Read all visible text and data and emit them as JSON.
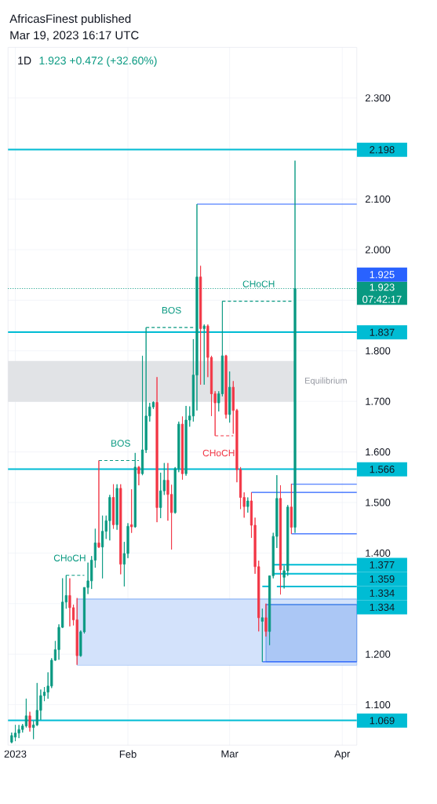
{
  "chart_data": {
    "type": "candlestick",
    "title": "AfricasFinest published",
    "subtitle": "Mar 19, 2023 16:17 UTC",
    "x": [
      "2022-12-31",
      "2023-01-01",
      "2023-01-02",
      "2023-01-03",
      "2023-01-04",
      "2023-01-05",
      "2023-01-06",
      "2023-01-07",
      "2023-01-08",
      "2023-01-09",
      "2023-01-10",
      "2023-01-11",
      "2023-01-12",
      "2023-01-13",
      "2023-01-14",
      "2023-01-15",
      "2023-01-16",
      "2023-01-17",
      "2023-01-18",
      "2023-01-19",
      "2023-01-20",
      "2023-01-21",
      "2023-01-22",
      "2023-01-23",
      "2023-01-24",
      "2023-01-25",
      "2023-01-26",
      "2023-01-27",
      "2023-01-28",
      "2023-01-29",
      "2023-01-30",
      "2023-01-31",
      "2023-02-01",
      "2023-02-02",
      "2023-02-03",
      "2023-02-04",
      "2023-02-05",
      "2023-02-06",
      "2023-02-07",
      "2023-02-08",
      "2023-02-09",
      "2023-02-10",
      "2023-02-11",
      "2023-02-12",
      "2023-02-13",
      "2023-02-14",
      "2023-02-15",
      "2023-02-16",
      "2023-02-17",
      "2023-02-18",
      "2023-02-19",
      "2023-02-20",
      "2023-02-21",
      "2023-02-22",
      "2023-02-23",
      "2023-02-24",
      "2023-02-25",
      "2023-02-26",
      "2023-02-27",
      "2023-02-28",
      "2023-03-01",
      "2023-03-02",
      "2023-03-03",
      "2023-03-04",
      "2023-03-05",
      "2023-03-06",
      "2023-03-07",
      "2023-03-08",
      "2023-03-09",
      "2023-03-10",
      "2023-03-11",
      "2023-03-12",
      "2023-03-13",
      "2023-03-14",
      "2023-03-15",
      "2023-03-16",
      "2023-03-17",
      "2023-03-18",
      "2023-03-19"
    ],
    "ohlc": [
      [
        1.026,
        1.045,
        1.024,
        1.039
      ],
      [
        1.036,
        1.06,
        1.028,
        1.044
      ],
      [
        1.044,
        1.06,
        1.034,
        1.051
      ],
      [
        1.051,
        1.062,
        1.045,
        1.058
      ],
      [
        1.058,
        1.112,
        1.055,
        1.078
      ],
      [
        1.078,
        1.086,
        1.047,
        1.055
      ],
      [
        1.055,
        1.068,
        1.032,
        1.06
      ],
      [
        1.06,
        1.143,
        1.058,
        1.089
      ],
      [
        1.089,
        1.13,
        1.07,
        1.118
      ],
      [
        1.118,
        1.135,
        1.107,
        1.125
      ],
      [
        1.125,
        1.164,
        1.112,
        1.137
      ],
      [
        1.137,
        1.192,
        1.133,
        1.188
      ],
      [
        1.188,
        1.226,
        1.187,
        1.209
      ],
      [
        1.209,
        1.259,
        1.189,
        1.253
      ],
      [
        1.253,
        1.35,
        1.252,
        1.303
      ],
      [
        1.303,
        1.356,
        1.29,
        1.316
      ],
      [
        1.316,
        1.35,
        1.255,
        1.292
      ],
      [
        1.292,
        1.298,
        1.257,
        1.268
      ],
      [
        1.268,
        1.311,
        1.179,
        1.197
      ],
      [
        1.197,
        1.247,
        1.195,
        1.244
      ],
      [
        1.244,
        1.332,
        1.241,
        1.332
      ],
      [
        1.332,
        1.381,
        1.319,
        1.345
      ],
      [
        1.345,
        1.394,
        1.329,
        1.386
      ],
      [
        1.386,
        1.448,
        1.371,
        1.42
      ],
      [
        1.42,
        1.583,
        1.41,
        1.412
      ],
      [
        1.412,
        1.474,
        1.35,
        1.443
      ],
      [
        1.443,
        1.474,
        1.428,
        1.464
      ],
      [
        1.464,
        1.515,
        1.425,
        1.51
      ],
      [
        1.51,
        1.536,
        1.448,
        1.456
      ],
      [
        1.456,
        1.536,
        1.446,
        1.528
      ],
      [
        1.528,
        1.536,
        1.358,
        1.378
      ],
      [
        1.378,
        1.422,
        1.334,
        1.399
      ],
      [
        1.399,
        1.459,
        1.39,
        1.453
      ],
      [
        1.456,
        1.526,
        1.44,
        1.452
      ],
      [
        1.452,
        1.598,
        1.45,
        1.57
      ],
      [
        1.57,
        1.572,
        1.534,
        1.557
      ],
      [
        1.557,
        1.79,
        1.554,
        1.604
      ],
      [
        1.604,
        1.846,
        1.598,
        1.671
      ],
      [
        1.671,
        1.697,
        1.66,
        1.689
      ],
      [
        1.689,
        1.7,
        1.685,
        1.698
      ],
      [
        1.698,
        1.748,
        1.461,
        1.49
      ],
      [
        1.49,
        1.559,
        1.469,
        1.523
      ],
      [
        1.523,
        1.578,
        1.515,
        1.544
      ],
      [
        1.544,
        1.578,
        1.464,
        1.516
      ],
      [
        1.516,
        1.535,
        1.407,
        1.48
      ],
      [
        1.48,
        1.57,
        1.478,
        1.567
      ],
      [
        1.567,
        1.66,
        1.56,
        1.655
      ],
      [
        1.655,
        1.67,
        1.545,
        1.557
      ],
      [
        1.557,
        1.691,
        1.553,
        1.663
      ],
      [
        1.663,
        1.69,
        1.65,
        1.671
      ],
      [
        1.671,
        1.823,
        1.66,
        1.752
      ],
      [
        1.752,
        2.09,
        1.682,
        1.946
      ],
      [
        1.946,
        1.968,
        1.733,
        1.844
      ],
      [
        1.844,
        1.852,
        1.733,
        1.849
      ],
      [
        1.849,
        1.852,
        1.748,
        1.787
      ],
      [
        1.787,
        1.79,
        1.671,
        1.715
      ],
      [
        1.715,
        1.72,
        1.632,
        1.697
      ],
      [
        1.697,
        1.72,
        1.68,
        1.715
      ],
      [
        1.715,
        1.898,
        1.71,
        1.79
      ],
      [
        1.79,
        1.792,
        1.666,
        1.674
      ],
      [
        1.674,
        1.759,
        1.658,
        1.728
      ],
      [
        1.728,
        1.74,
        1.636,
        1.682
      ],
      [
        1.682,
        1.685,
        1.54,
        1.565
      ],
      [
        1.565,
        1.57,
        1.487,
        1.51
      ],
      [
        1.51,
        1.52,
        1.47,
        1.492
      ],
      [
        1.492,
        1.51,
        1.48,
        1.503
      ],
      [
        1.503,
        1.52,
        1.43,
        1.455
      ],
      [
        1.455,
        1.47,
        1.359,
        1.373
      ],
      [
        1.373,
        1.385,
        1.245,
        1.272
      ],
      [
        1.265,
        1.29,
        1.185,
        1.272
      ],
      [
        1.272,
        1.3,
        1.235,
        1.245
      ],
      [
        1.245,
        1.355,
        1.218,
        1.355
      ],
      [
        1.355,
        1.44,
        1.35,
        1.433
      ],
      [
        1.433,
        1.554,
        1.41,
        1.508
      ],
      [
        1.508,
        1.534,
        1.318,
        1.367
      ],
      [
        1.352,
        1.375,
        1.33,
        1.365
      ],
      [
        1.365,
        1.495,
        1.355,
        1.491
      ],
      [
        1.491,
        1.537,
        1.438,
        1.451
      ],
      [
        1.451,
        2.176,
        1.44,
        1.923
      ]
    ],
    "series": [
      {
        "type": "line",
        "x": [
          "2023-01-18",
          "2023-04-05"
        ],
        "values": [
          1.309,
          1.309
        ],
        "lower": [
          1.178,
          1.178
        ],
        "upper": [
          1.309,
          1.309
        ],
        "color": "#91B7F5"
      },
      {
        "type": "line",
        "x": [
          "2023-03-11",
          "2023-04-05"
        ],
        "values": [
          1.298,
          1.298
        ],
        "lower": [
          1.185,
          1.185
        ],
        "upper": [
          1.298,
          1.298
        ],
        "color": "#2D73E6"
      },
      {
        "type": "line",
        "name": "1.377",
        "x": [
          "2023-03-13",
          "2023-04-05"
        ],
        "values": [
          1.377,
          1.377
        ],
        "color": "#00BCD4"
      },
      {
        "type": "line",
        "name": "1.359",
        "x": [
          "2023-03-13",
          "2023-04-05"
        ],
        "values": [
          1.359,
          1.359
        ],
        "color": "#00BCD4"
      },
      {
        "type": "line",
        "name": "1.334",
        "x": [
          "2023-03-10",
          "2023-03-12"
        ],
        "values": [
          1.334,
          1.334
        ],
        "color": "#00BCD4"
      },
      {
        "type": "line",
        "name": "1.334",
        "x": [
          "2023-03-14",
          "2023-04-05"
        ],
        "values": [
          1.334,
          1.334
        ],
        "color": "#00BCD4"
      },
      {
        "type": "line",
        "x": [
          "2023-02-20",
          "2023-04-05"
        ],
        "values": [
          2.09,
          2.09
        ],
        "color": "#2962FF"
      },
      {
        "type": "line",
        "x": [
          "2023-03-07",
          "2023-04-05"
        ],
        "values": [
          1.52,
          1.52
        ],
        "color": "#2962FF"
      },
      {
        "type": "line",
        "x": [
          "2023-03-18",
          "2023-04-05"
        ],
        "values": [
          1.536,
          1.536
        ],
        "color": "#2962FF"
      },
      {
        "type": "line",
        "x": [
          "2023-03-18",
          "2023-04-05"
        ],
        "values": [
          1.438,
          1.438
        ],
        "color": "#2962FF"
      },
      {
        "type": "line",
        "x": [
          "2023-03-10",
          "2023-04-05"
        ],
        "values": [
          1.185,
          1.185
        ],
        "color": "#2962FF"
      },
      {
        "type": "line",
        "x": [
          "2023-01-15",
          "2023-01-20"
        ],
        "values": [
          1.356,
          1.356
        ],
        "color": "#089981",
        "line_style": "dashed"
      },
      {
        "type": "line",
        "x": [
          "2023-01-24",
          "2023-02-04"
        ],
        "values": [
          1.583,
          1.583
        ],
        "color": "#089981",
        "line_style": "dashed"
      },
      {
        "type": "line",
        "x": [
          "2023-02-06",
          "2023-02-19"
        ],
        "values": [
          1.846,
          1.846
        ],
        "color": "#089981",
        "line_style": "dashed"
      },
      {
        "type": "line",
        "x": [
          "2023-02-25",
          "2023-03-02"
        ],
        "values": [
          1.632,
          1.632
        ],
        "color": "#F23645",
        "line_style": "dashed"
      },
      {
        "type": "line",
        "x": [
          "2023-02-27",
          "2023-03-18"
        ],
        "values": [
          1.898,
          1.898
        ],
        "color": "#089981",
        "line_style": "dashed"
      }
    ],
    "xlim": [
      "2022-12-30",
      "2023-04-05"
    ],
    "ylim": [
      1.02,
      2.4
    ],
    "xticks": [
      {
        "value": "2023-01-01",
        "label": "2023"
      },
      {
        "value": "2023-02-01",
        "label": "Feb"
      },
      {
        "value": "2023-03-01",
        "label": "Mar"
      },
      {
        "value": "2023-04-01",
        "label": "Apr"
      }
    ],
    "yticks": [
      {
        "value": 1.1,
        "label": "1.100"
      },
      {
        "value": 1.2,
        "label": "1.200"
      },
      {
        "value": 1.3,
        "label": null
      },
      {
        "value": 1.4,
        "label": "1.400"
      },
      {
        "value": 1.5,
        "label": "1.500"
      },
      {
        "value": 1.6,
        "label": "1.600"
      },
      {
        "value": 1.7,
        "label": "1.700"
      },
      {
        "value": 1.8,
        "label": "1.800"
      },
      {
        "value": 1.9,
        "label": null
      },
      {
        "value": 2.0,
        "label": "2.000"
      },
      {
        "value": 2.1,
        "label": "2.100"
      },
      {
        "value": 2.2,
        "label": null
      },
      {
        "value": 2.3,
        "label": "2.300"
      }
    ],
    "grid": true,
    "legend": "right",
    "ref_lines": [
      {
        "axis": "y",
        "value": 2.198,
        "label": "2.198",
        "color": "#00BCD4"
      },
      {
        "axis": "y",
        "value": 1.837,
        "label": "1.837",
        "color": "#00BCD4"
      },
      {
        "axis": "y",
        "value": 1.566,
        "label": "1.566",
        "color": "#00BCD4"
      },
      {
        "axis": "y",
        "value": 1.069,
        "label": "1.069",
        "color": "#00BCD4"
      },
      {
        "axis": "y",
        "value": 1.923,
        "label": "1.923 07:42:17",
        "color": "#089981",
        "line_style": "dotted"
      }
    ],
    "bands": [
      {
        "axis": "y",
        "from": 1.699,
        "to": 1.78,
        "label": "Equilibrium",
        "color": "#E1E3E6"
      }
    ],
    "annotations": [
      "1D",
      "1.923 +0.472 (+32.60%)",
      "1.925",
      {
        "text": "CHoCH",
        "x": "2023-01-16",
        "y": 1.356
      },
      {
        "text": "BOS",
        "x": "2023-01-30",
        "y": 1.583
      },
      {
        "text": "BOS",
        "x": "2023-02-13",
        "y": 1.846
      },
      {
        "text": "CHoCH",
        "x": "2023-02-26",
        "y": 1.632
      },
      {
        "text": "CHoCH",
        "x": "2023-03-09",
        "y": 1.898
      }
    ]
  }
}
